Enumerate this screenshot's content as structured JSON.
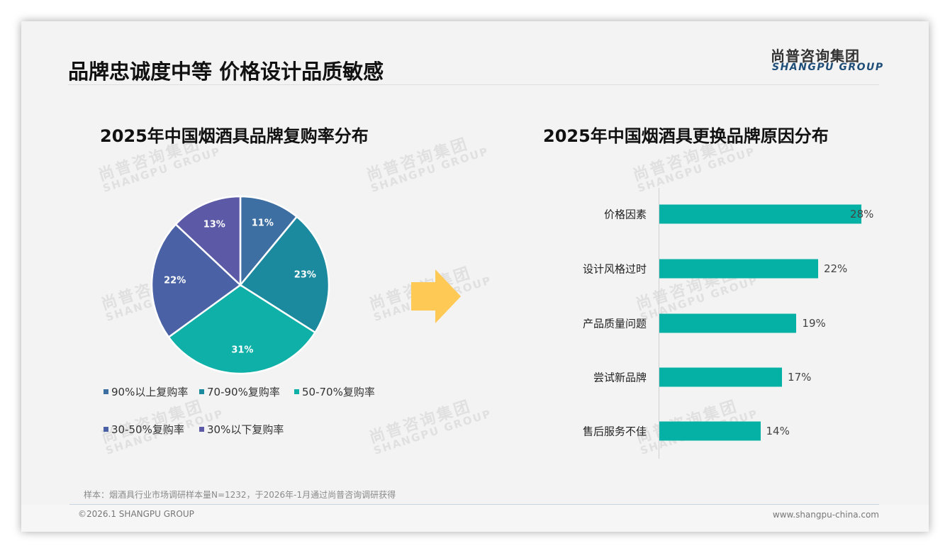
{
  "header": {
    "title": "品牌忠诚度中等 价格设计品质敏感",
    "logo_cn": "尚普咨询集团",
    "logo_en": "SHANGPU GROUP"
  },
  "watermark": {
    "cn": "尚普咨询集团",
    "en": "SHANGPU GROUP"
  },
  "left_chart": {
    "title": "2025年中国烟酒具品牌复购率分布"
  },
  "right_chart": {
    "title": "2025年中国烟酒具更换品牌原因分布"
  },
  "arrow": {
    "icon": "right-arrow-icon",
    "color": "#ffc956"
  },
  "chart_data": [
    {
      "type": "pie",
      "title": "2025年中国烟酒具品牌复购率分布",
      "categories": [
        "90%以上复购率",
        "70-90%复购率",
        "50-70%复购率",
        "30-50%复购率",
        "30%以下复购率"
      ],
      "values": [
        11,
        23,
        31,
        22,
        13
      ],
      "labels": [
        "11%",
        "23%",
        "31%",
        "22%",
        "13%"
      ],
      "colors": [
        "#3e6fa3",
        "#1c8a9e",
        "#0fb0a8",
        "#4a62a5",
        "#5c5aa6"
      ],
      "legend_position": "bottom"
    },
    {
      "type": "bar",
      "orientation": "horizontal",
      "title": "2025年中国烟酒具更换品牌原因分布",
      "categories": [
        "价格因素",
        "设计风格过时",
        "产品质量问题",
        "尝试新品牌",
        "售后服务不佳"
      ],
      "values": [
        28,
        22,
        19,
        17,
        14
      ],
      "labels": [
        "28%",
        "22%",
        "19%",
        "17%",
        "14%"
      ],
      "color": "#05b0a4",
      "xlabel": "",
      "ylabel": "",
      "grid": false
    }
  ],
  "footer": {
    "note": "样本：烟酒具行业市场调研样本量N=1232，于2026年-1月通过尚普咨询调研获得",
    "copyright": "©2026.1 SHANGPU GROUP",
    "website": "www.shangpu-china.com"
  }
}
